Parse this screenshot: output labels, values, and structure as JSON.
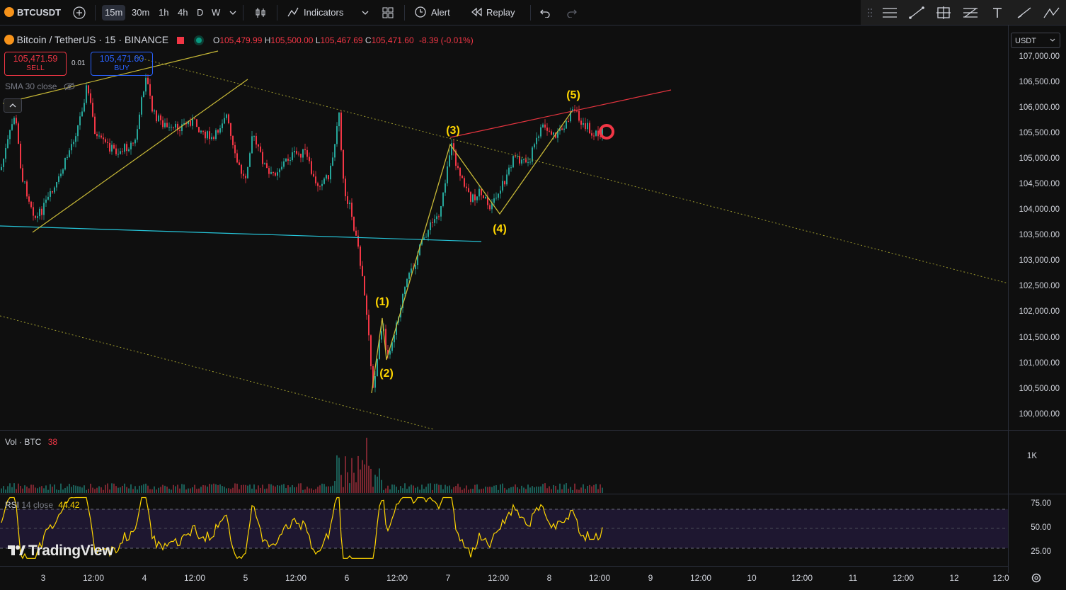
{
  "toolbar": {
    "symbol": "BTCUSDT",
    "intervals": [
      "15m",
      "30m",
      "1h",
      "4h",
      "D",
      "W"
    ],
    "active_interval": "15m",
    "indicators_label": "Indicators",
    "alert_label": "Alert",
    "replay_label": "Replay"
  },
  "legend": {
    "title": "Bitcoin / TetherUS · 15 · BINANCE",
    "o_label": "O",
    "o_value": "105,479.99",
    "h_label": "H",
    "h_value": "105,500.00",
    "l_label": "L",
    "l_value": "105,467.69",
    "c_label": "C",
    "c_value": "105,471.60",
    "change": "-8.39 (-0.01%)"
  },
  "trade": {
    "sell_price": "105,471.59",
    "sell_label": "SELL",
    "spread": "0.01",
    "buy_price": "105,471.60",
    "buy_label": "BUY"
  },
  "sma_label": "SMA 30 close",
  "currency": "USDT",
  "price_axis": [
    "107,000.00",
    "106,500.00",
    "106,000.00",
    "105,500.00",
    "105,000.00",
    "104,500.00",
    "104,000.00",
    "103,500.00",
    "103,000.00",
    "102,500.00",
    "102,000.00",
    "101,500.00",
    "101,000.00",
    "100,500.00",
    "100,000.00"
  ],
  "volume": {
    "label": "Vol · BTC",
    "value": "38",
    "axis": "1K"
  },
  "rsi": {
    "label": "RSI",
    "params": "14 close",
    "value": "44.42",
    "axis": [
      "75.00",
      "50.00",
      "25.00"
    ]
  },
  "waves": [
    "(1)",
    "(2)",
    "(3)",
    "(4)",
    "(5)"
  ],
  "time_axis": [
    "3",
    "12:00",
    "4",
    "12:00",
    "5",
    "12:00",
    "6",
    "12:00",
    "7",
    "12:00",
    "8",
    "12:00",
    "9",
    "12:00",
    "10",
    "12:00",
    "11",
    "12:00",
    "12",
    "12:0"
  ],
  "watermark": "TradingView",
  "colors": {
    "up": "#26a69a",
    "down": "#f23645",
    "wave": "#ffd600",
    "accent": "#2962ff"
  }
}
